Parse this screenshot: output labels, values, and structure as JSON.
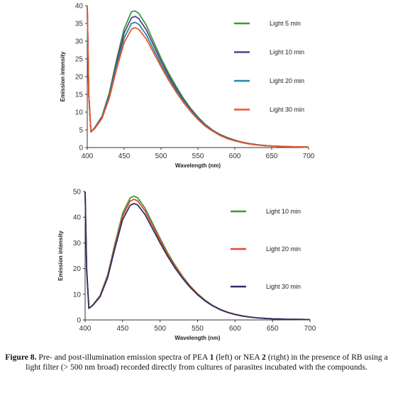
{
  "chart_data": [
    {
      "type": "line",
      "title": "",
      "xlabel": "Wavelength (nm)",
      "ylabel": "Emission intensity",
      "xlim": [
        400,
        700
      ],
      "ylim": [
        0,
        40
      ],
      "xticks": [
        400,
        450,
        500,
        550,
        600,
        650,
        700
      ],
      "yticks": [
        0,
        5,
        10,
        15,
        20,
        25,
        30,
        35,
        40
      ],
      "grid": false,
      "legend_position": "right",
      "x": [
        400,
        402,
        405,
        410,
        420,
        430,
        440,
        450,
        460,
        465,
        470,
        480,
        490,
        500,
        510,
        520,
        530,
        540,
        550,
        560,
        570,
        580,
        590,
        600,
        610,
        620,
        630,
        640,
        650,
        660,
        670,
        680,
        690,
        700
      ],
      "series": [
        {
          "name": "Light 5 min",
          "color": "#3a9a3a",
          "values": [
            40,
            15,
            4.4,
            5.6,
            8.8,
            15.5,
            25,
            33.5,
            38.3,
            38.5,
            37.8,
            34.5,
            29.8,
            25.2,
            21.1,
            17.4,
            14.0,
            11.1,
            8.6,
            6.5,
            4.9,
            3.7,
            2.8,
            2.1,
            1.5,
            1.1,
            0.8,
            0.6,
            0.45,
            0.35,
            0.28,
            0.22,
            0.18,
            0.15
          ]
        },
        {
          "name": "Light 10 min",
          "color": "#5b3f8c",
          "values": [
            40,
            15,
            4.4,
            5.5,
            8.6,
            15.0,
            24.2,
            32.3,
            36.6,
            37.0,
            36.3,
            33.2,
            28.8,
            24.4,
            20.4,
            16.8,
            13.6,
            10.8,
            8.4,
            6.4,
            4.8,
            3.6,
            2.7,
            2.0,
            1.5,
            1.1,
            0.8,
            0.6,
            0.45,
            0.35,
            0.28,
            0.22,
            0.18,
            0.15
          ]
        },
        {
          "name": "Light 20 min",
          "color": "#1f8ba0",
          "values": [
            40,
            15,
            4.4,
            5.4,
            8.4,
            14.5,
            23.2,
            30.9,
            35.0,
            35.3,
            34.7,
            31.8,
            27.6,
            23.5,
            19.7,
            16.3,
            13.2,
            10.5,
            8.1,
            6.2,
            4.7,
            3.5,
            2.6,
            1.9,
            1.4,
            1.0,
            0.75,
            0.55,
            0.42,
            0.33,
            0.27,
            0.21,
            0.17,
            0.14
          ]
        },
        {
          "name": "Light 30 min",
          "color": "#e8562c",
          "values": [
            40,
            15,
            4.4,
            5.3,
            8.2,
            14.0,
            22.3,
            29.6,
            33.4,
            33.8,
            33.3,
            30.6,
            26.7,
            22.8,
            19.1,
            15.8,
            12.8,
            10.2,
            7.9,
            6.0,
            4.6,
            3.4,
            2.5,
            1.9,
            1.4,
            1.0,
            0.75,
            0.55,
            0.42,
            0.33,
            0.27,
            0.21,
            0.17,
            0.14
          ]
        }
      ]
    },
    {
      "type": "line",
      "title": "",
      "xlabel": "Wavelength (nm)",
      "ylabel": "Emission intensity",
      "xlim": [
        400,
        700
      ],
      "ylim": [
        0,
        50
      ],
      "xticks": [
        400,
        450,
        500,
        550,
        600,
        650,
        700
      ],
      "yticks": [
        0,
        10,
        20,
        30,
        40,
        50
      ],
      "grid": false,
      "legend_position": "right",
      "x": [
        400,
        402,
        405,
        410,
        420,
        430,
        440,
        450,
        460,
        465,
        470,
        480,
        490,
        500,
        510,
        520,
        530,
        540,
        550,
        560,
        570,
        580,
        590,
        600,
        610,
        620,
        630,
        640,
        650,
        660,
        670,
        680,
        690,
        700
      ],
      "series": [
        {
          "name": "Light 10 min",
          "color": "#3a9a3a",
          "values": [
            50,
            20,
            4.5,
            5.8,
            9.5,
            17.5,
            30.0,
            41.5,
            47.5,
            48.2,
            47.6,
            43.5,
            37.6,
            31.7,
            26.2,
            21.3,
            17.0,
            13.3,
            10.2,
            7.7,
            5.7,
            4.2,
            3.0,
            2.2,
            1.6,
            1.1,
            0.8,
            0.6,
            0.45,
            0.35,
            0.28,
            0.22,
            0.18,
            0.15
          ]
        },
        {
          "name": "Light 20 min",
          "color": "#e8462c",
          "values": [
            50,
            20,
            4.5,
            5.7,
            9.3,
            17.0,
            29.2,
            40.4,
            46.3,
            47.0,
            46.4,
            42.4,
            36.7,
            31.0,
            25.6,
            20.8,
            16.6,
            13.0,
            10.0,
            7.5,
            5.6,
            4.1,
            3.0,
            2.2,
            1.6,
            1.1,
            0.8,
            0.6,
            0.45,
            0.35,
            0.28,
            0.22,
            0.18,
            0.15
          ]
        },
        {
          "name": "Light 30 min",
          "color": "#2f2f6a",
          "values": [
            50,
            20,
            4.5,
            5.6,
            9.0,
            16.4,
            28.2,
            39.0,
            44.6,
            45.3,
            44.8,
            41.0,
            35.5,
            30.0,
            24.8,
            20.2,
            16.2,
            12.7,
            9.8,
            7.4,
            5.5,
            4.0,
            2.9,
            2.1,
            1.5,
            1.1,
            0.8,
            0.6,
            0.45,
            0.35,
            0.28,
            0.22,
            0.18,
            0.15
          ]
        }
      ]
    }
  ],
  "caption": {
    "label": "Figure 8.",
    "text_1": " Pre- and post-illumination emission spectra of PEA ",
    "bold_1": "1",
    "text_2": " (left) or NEA ",
    "bold_2": "2",
    "text_3": " (right) in the presence of RB using a light filter (> 500 nm broad) recorded directly from cultures of parasites incubated with the compounds."
  }
}
